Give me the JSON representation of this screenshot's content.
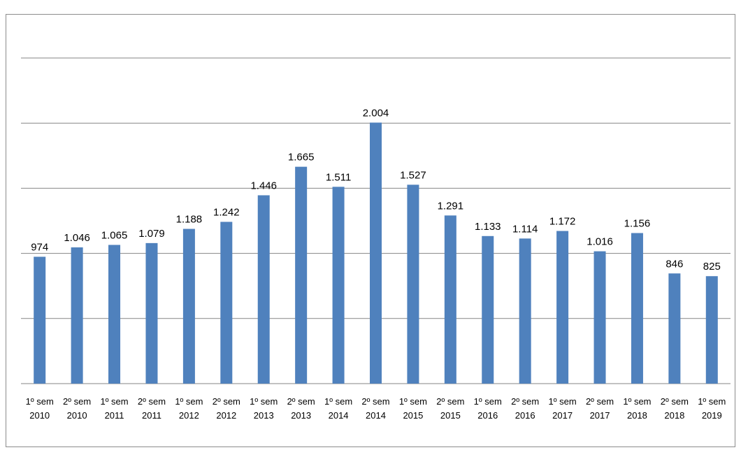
{
  "chart_data": {
    "type": "bar",
    "title": "",
    "categories": [
      [
        "1º sem",
        "2010"
      ],
      [
        "2º sem",
        "2010"
      ],
      [
        "1º sem",
        "2011"
      ],
      [
        "2º sem",
        "2011"
      ],
      [
        "1º sem",
        "2012"
      ],
      [
        "2º sem",
        "2012"
      ],
      [
        "1º sem",
        "2013"
      ],
      [
        "2º sem",
        "2013"
      ],
      [
        "1º sem",
        "2014"
      ],
      [
        "2º sem",
        "2014"
      ],
      [
        "1º sem",
        "2015"
      ],
      [
        "2º sem",
        "2015"
      ],
      [
        "1º sem",
        "2016"
      ],
      [
        "2º sem",
        "2016"
      ],
      [
        "1º sem",
        "2017"
      ],
      [
        "2º sem",
        "2017"
      ],
      [
        "1º sem",
        "2018"
      ],
      [
        "2º sem",
        "2018"
      ],
      [
        "1º sem",
        "2019"
      ]
    ],
    "values": [
      974,
      1046,
      1065,
      1079,
      1188,
      1242,
      1446,
      1665,
      1511,
      2004,
      1527,
      1291,
      1133,
      1114,
      1172,
      1016,
      1156,
      846,
      825
    ],
    "data_labels": [
      "974",
      "1.046",
      "1.065",
      "1.079",
      "1.188",
      "1.242",
      "1.446",
      "1.665",
      "1.511",
      "2.004",
      "1.527",
      "1.291",
      "1.133",
      "1.114",
      "1.172",
      "1.016",
      "1.156",
      "846",
      "825"
    ],
    "ylim": [
      0,
      2500
    ],
    "gridlines": [
      500,
      1000,
      1500,
      2000,
      2500
    ],
    "grid": true,
    "bar_color": "#4f81bd",
    "grid_color": "#868686",
    "xlabel": "",
    "ylabel": ""
  }
}
